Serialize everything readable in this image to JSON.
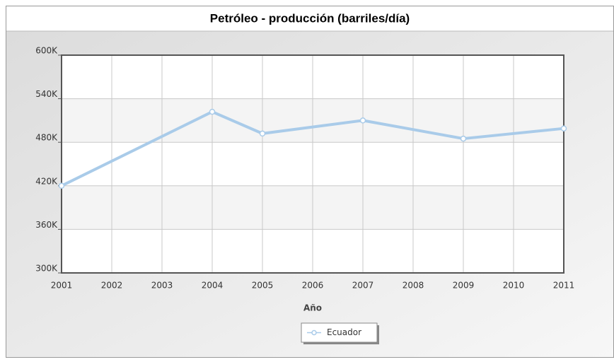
{
  "chart_data": {
    "type": "line",
    "title": "Petróleo - producción (barriles/día)",
    "x_label": "Año",
    "x": [
      2001,
      2004,
      2005,
      2007,
      2009,
      2011
    ],
    "series": [
      {
        "name": "Ecuador",
        "color": "#a9cbe9",
        "values": [
          420000,
          522000,
          492000,
          510000,
          485000,
          499000
        ]
      }
    ],
    "xlim": [
      2001,
      2011
    ],
    "xticks": [
      2001,
      2002,
      2003,
      2004,
      2005,
      2006,
      2007,
      2008,
      2009,
      2010,
      2011
    ],
    "ylim": [
      300000,
      600000
    ],
    "yticks": [
      {
        "value": 300000,
        "label": "300K"
      },
      {
        "value": 360000,
        "label": "360K"
      },
      {
        "value": 420000,
        "label": "420K"
      },
      {
        "value": 480000,
        "label": "480K"
      },
      {
        "value": 540000,
        "label": "540K"
      },
      {
        "value": 600000,
        "label": "600K"
      }
    ],
    "grid": true,
    "legend": "bottom"
  }
}
